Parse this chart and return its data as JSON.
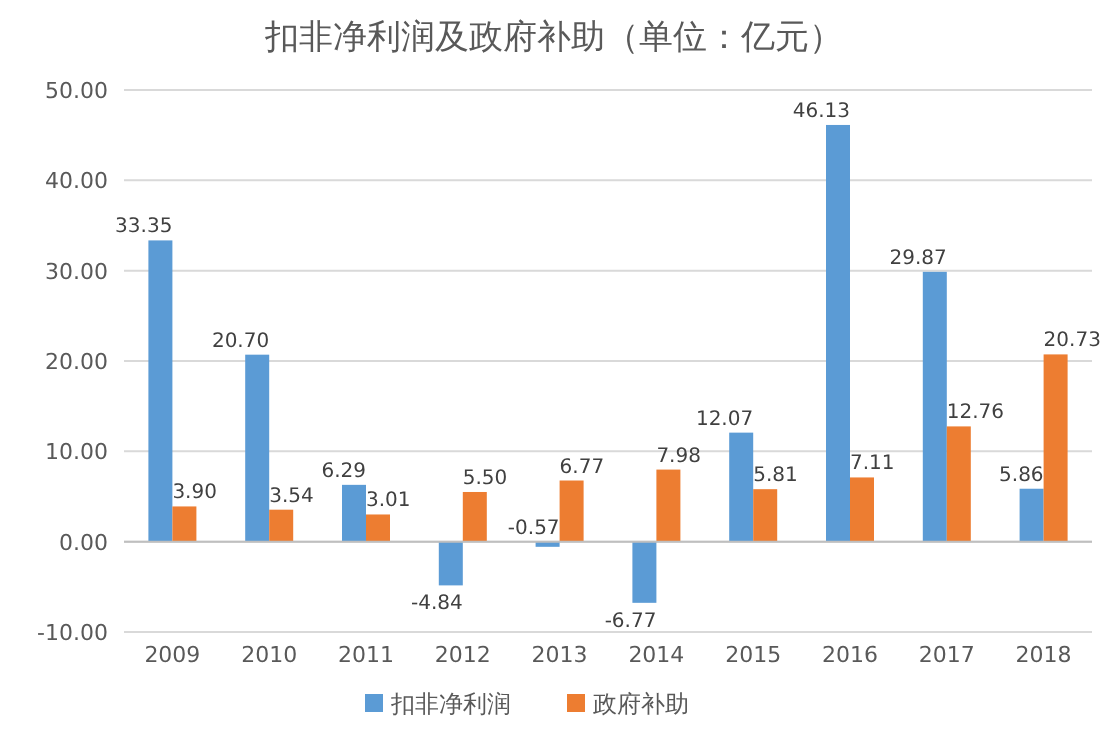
{
  "chart_data": {
    "type": "bar",
    "title": "扣非净利润及政府补助（单位：亿元）",
    "categories": [
      "2009",
      "2010",
      "2011",
      "2012",
      "2013",
      "2014",
      "2015",
      "2016",
      "2017",
      "2018"
    ],
    "series": [
      {
        "name": "扣非净利润",
        "color": "#5b9bd5",
        "values": [
          33.35,
          20.7,
          6.29,
          -4.84,
          -0.57,
          -6.77,
          12.07,
          46.13,
          29.87,
          5.86
        ],
        "value_labels": [
          "33.35",
          "20.70",
          "6.29",
          "-4.84",
          "-0.57",
          "-6.77",
          "12.07",
          "46.13",
          "29.87",
          "5.86"
        ]
      },
      {
        "name": "政府补助",
        "color": "#ed7d31",
        "values": [
          3.9,
          3.54,
          3.01,
          5.5,
          6.77,
          7.98,
          5.81,
          7.11,
          12.76,
          20.73
        ],
        "value_labels": [
          "3.90",
          "3.54",
          "3.01",
          "5.50",
          "6.77",
          "7.98",
          "5.81",
          "7.11",
          "12.76",
          "20.73"
        ]
      }
    ],
    "ylim": [
      -10,
      50
    ],
    "yticks": [
      {
        "value": -10,
        "label": "-10.00"
      },
      {
        "value": 0,
        "label": "0.00"
      },
      {
        "value": 10,
        "label": "10.00"
      },
      {
        "value": 20,
        "label": "20.00"
      },
      {
        "value": 30,
        "label": "30.00"
      },
      {
        "value": 40,
        "label": "40.00"
      },
      {
        "value": 50,
        "label": "50.00"
      }
    ],
    "grid": "y",
    "legend": "bottom"
  }
}
